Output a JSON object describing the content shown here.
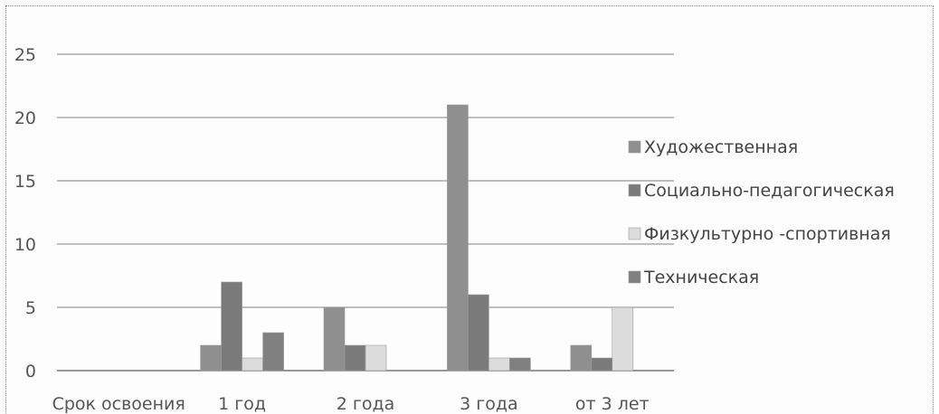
{
  "chart_data": {
    "type": "bar",
    "categories": [
      "Срок освоения",
      "1 год",
      "2 года",
      "3 года",
      "от 3 лет"
    ],
    "series": [
      {
        "name": "Художественная",
        "values": [
          0,
          2,
          5,
          21,
          2
        ]
      },
      {
        "name": "Социально-педагогическая",
        "values": [
          0,
          7,
          2,
          6,
          1
        ]
      },
      {
        "name": "Физкультурно -спортивная",
        "values": [
          0,
          1,
          2,
          1,
          5
        ]
      },
      {
        "name": "Техническая",
        "values": [
          0,
          3,
          0,
          1,
          0
        ]
      }
    ],
    "ylim": [
      0,
      25
    ],
    "yticks": [
      "0",
      "5",
      "10",
      "15",
      "20",
      "25"
    ],
    "grid": true,
    "legend_position": "right",
    "colors": [
      "#8f8f8f",
      "#7a7a7a",
      "#dcdcdc",
      "#808080"
    ]
  }
}
